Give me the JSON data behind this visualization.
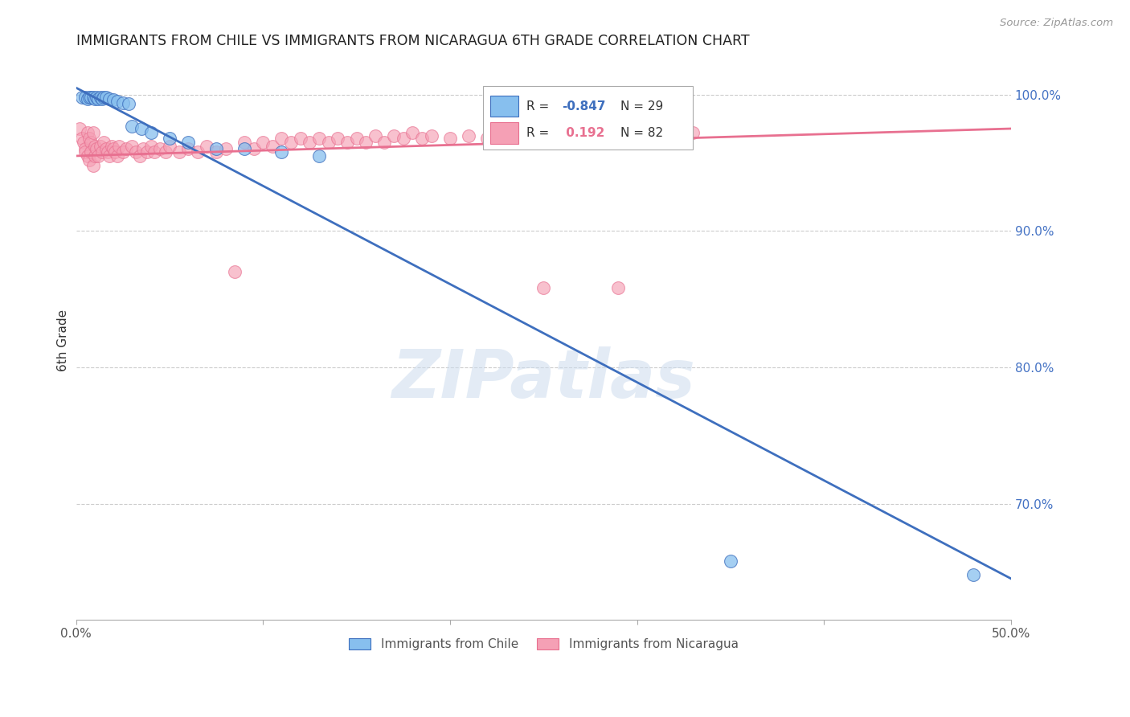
{
  "title": "IMMIGRANTS FROM CHILE VS IMMIGRANTS FROM NICARAGUA 6TH GRADE CORRELATION CHART",
  "source": "Source: ZipAtlas.com",
  "ylabel_left": "6th Grade",
  "legend_chile": "Immigrants from Chile",
  "legend_nicaragua": "Immigrants from Nicaragua",
  "chile_R": -0.847,
  "chile_N": 29,
  "nicaragua_R": 0.192,
  "nicaragua_N": 82,
  "xlim": [
    0.0,
    0.5
  ],
  "ylim": [
    0.615,
    1.025
  ],
  "xticks": [
    0.0,
    0.1,
    0.2,
    0.3,
    0.4,
    0.5
  ],
  "xtick_labels": [
    "0.0%",
    "",
    "",
    "",
    "",
    "50.0%"
  ],
  "yticks_right": [
    0.7,
    0.8,
    0.9,
    1.0
  ],
  "ytick_labels_right": [
    "70.0%",
    "80.0%",
    "90.0%",
    "100.0%"
  ],
  "color_chile": "#87BFEE",
  "color_nicaragua": "#F5A0B5",
  "color_chile_line": "#3E6FBE",
  "color_nicaragua_line": "#E87090",
  "watermark": "ZIPatlas",
  "chile_line_x0": 0.0,
  "chile_line_y0": 1.005,
  "chile_line_x1": 0.5,
  "chile_line_y1": 0.645,
  "nicaragua_line_x0": 0.0,
  "nicaragua_line_y0": 0.955,
  "nicaragua_line_x1": 0.5,
  "nicaragua_line_y1": 0.975,
  "chile_points_x": [
    0.003,
    0.005,
    0.006,
    0.007,
    0.008,
    0.009,
    0.01,
    0.011,
    0.012,
    0.013,
    0.014,
    0.015,
    0.016,
    0.018,
    0.02,
    0.022,
    0.025,
    0.028,
    0.03,
    0.035,
    0.04,
    0.05,
    0.06,
    0.075,
    0.09,
    0.11,
    0.13,
    0.35,
    0.48
  ],
  "chile_points_y": [
    0.998,
    0.998,
    0.997,
    0.998,
    0.998,
    0.998,
    0.997,
    0.998,
    0.997,
    0.998,
    0.997,
    0.998,
    0.998,
    0.997,
    0.996,
    0.995,
    0.994,
    0.993,
    0.977,
    0.975,
    0.972,
    0.968,
    0.965,
    0.96,
    0.96,
    0.958,
    0.955,
    0.658,
    0.648
  ],
  "nicaragua_points_x": [
    0.002,
    0.003,
    0.004,
    0.005,
    0.005,
    0.006,
    0.006,
    0.007,
    0.007,
    0.008,
    0.008,
    0.009,
    0.009,
    0.01,
    0.01,
    0.011,
    0.012,
    0.013,
    0.014,
    0.015,
    0.016,
    0.017,
    0.018,
    0.019,
    0.02,
    0.021,
    0.022,
    0.023,
    0.025,
    0.027,
    0.03,
    0.032,
    0.034,
    0.036,
    0.038,
    0.04,
    0.042,
    0.045,
    0.048,
    0.05,
    0.055,
    0.06,
    0.065,
    0.07,
    0.075,
    0.08,
    0.085,
    0.09,
    0.095,
    0.1,
    0.105,
    0.11,
    0.115,
    0.12,
    0.125,
    0.13,
    0.135,
    0.14,
    0.145,
    0.15,
    0.155,
    0.16,
    0.165,
    0.17,
    0.175,
    0.18,
    0.185,
    0.19,
    0.2,
    0.21,
    0.22,
    0.23,
    0.24,
    0.25,
    0.26,
    0.27,
    0.28,
    0.295,
    0.31,
    0.33,
    0.25,
    0.29
  ],
  "nicaragua_points_y": [
    0.975,
    0.968,
    0.965,
    0.96,
    0.958,
    0.972,
    0.955,
    0.968,
    0.952,
    0.965,
    0.958,
    0.972,
    0.948,
    0.962,
    0.955,
    0.96,
    0.955,
    0.962,
    0.958,
    0.965,
    0.96,
    0.958,
    0.955,
    0.962,
    0.96,
    0.958,
    0.955,
    0.962,
    0.958,
    0.96,
    0.962,
    0.958,
    0.955,
    0.96,
    0.958,
    0.962,
    0.958,
    0.96,
    0.958,
    0.962,
    0.958,
    0.96,
    0.958,
    0.962,
    0.958,
    0.96,
    0.87,
    0.965,
    0.96,
    0.965,
    0.962,
    0.968,
    0.965,
    0.968,
    0.965,
    0.968,
    0.965,
    0.968,
    0.965,
    0.968,
    0.965,
    0.97,
    0.965,
    0.97,
    0.968,
    0.972,
    0.968,
    0.97,
    0.968,
    0.97,
    0.968,
    0.97,
    0.968,
    0.972,
    0.97,
    0.972,
    0.97,
    0.972,
    0.97,
    0.972,
    0.858,
    0.858
  ]
}
